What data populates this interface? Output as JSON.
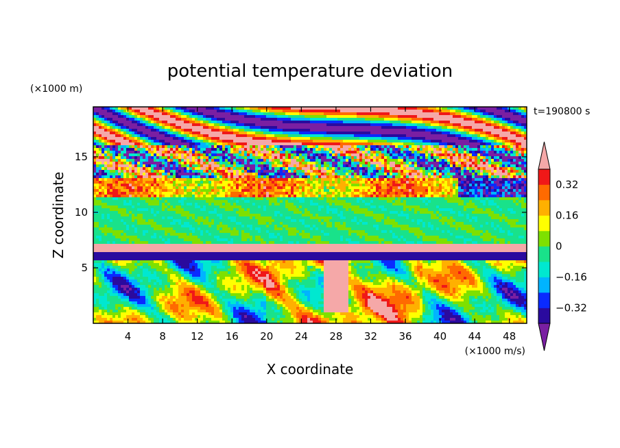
{
  "chart_data": {
    "type": "heatmap",
    "title": "potential temperature deviation",
    "xlabel": "X coordinate",
    "ylabel": "Z coordinate",
    "x_unit": "(×1000 m/s)",
    "y_unit": "(×1000 m)",
    "time_label": "t=190800 s",
    "xlim": [
      0,
      50
    ],
    "ylim": [
      0,
      19.5
    ],
    "x_ticks": [
      4,
      8,
      12,
      16,
      20,
      24,
      28,
      32,
      36,
      40,
      44,
      48
    ],
    "y_ticks": [
      5,
      10,
      15
    ],
    "colorbar": {
      "levels": [
        -0.4,
        -0.32,
        -0.24,
        -0.16,
        -0.08,
        0,
        0.08,
        0.16,
        0.24,
        0.32,
        0.4
      ],
      "labeled_levels": [
        0.32,
        0.16,
        0,
        -0.16,
        -0.32
      ],
      "colors": [
        "#7a1fa2",
        "#2a0a9e",
        "#0a2aff",
        "#00b4ff",
        "#00e8d0",
        "#19e28a",
        "#7ee000",
        "#ffff00",
        "#ffb000",
        "#ff6a00",
        "#f01818",
        "#f5a8a8"
      ],
      "extend": "both"
    }
  }
}
